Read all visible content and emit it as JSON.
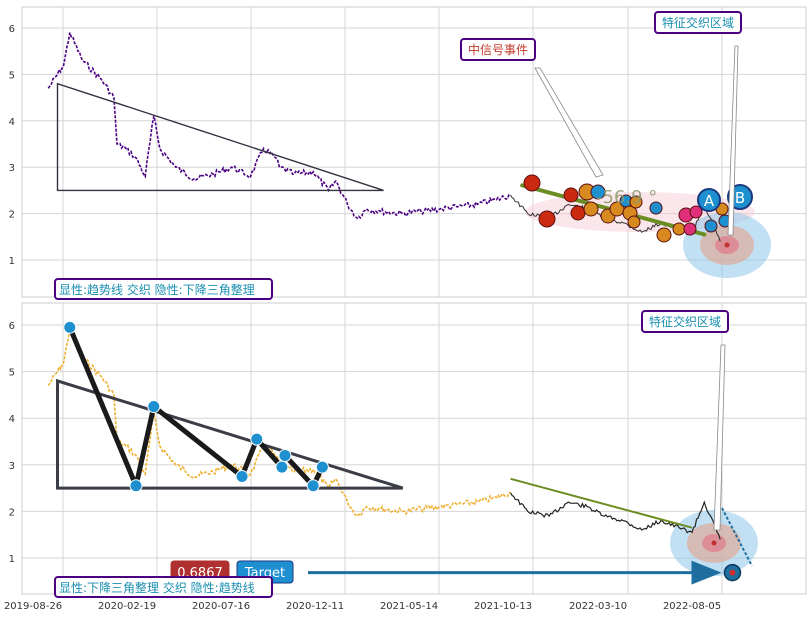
{
  "panels": {
    "top": {
      "callout_signal": "中信号事件",
      "callout_region": "特征交织区域",
      "angle_label": "-56.9 °",
      "circle_a": "A",
      "circle_b": "B",
      "legend": "显性:趋势线 交织 隐性:下降三角整理"
    },
    "bottom": {
      "callout_region": "特征交织区域",
      "legend": "显性:下降三角整理 交织 隐性:趋势线",
      "value_badge": "0.6867",
      "target_badge": "Target"
    }
  },
  "colors": {
    "top_series": "#4b0082",
    "bottom_series": "#f0b030",
    "triangle": "#333340",
    "trend": "#6b8e23",
    "pivot": "#1e90d0",
    "signal": "#cc2a10",
    "callout_border": "#4b0082",
    "callout_text_red": "#c0392b",
    "callout_text_teal": "#1a8fb0",
    "badge_red": "#b03030",
    "badge_blue": "#1e8fd0"
  },
  "chart_data": [
    {
      "type": "line",
      "panel": "top",
      "ylim": [
        0.3,
        6.4
      ],
      "y_ticks": [
        "1",
        "2",
        "3",
        "4",
        "5",
        "6"
      ],
      "x_ticks": [
        "2019-08-26",
        "2020-02-19",
        "2020-07-16",
        "2020-12-11",
        "2021-05-14",
        "2021-10-13",
        "2022-03-10",
        "2022-08-05"
      ],
      "grid": true,
      "series": [
        {
          "x": [
            "2019-09-20",
            "2019-10-15",
            "2019-10-25",
            "2019-11-15",
            "2019-12-15",
            "2020-01-05",
            "2020-01-10",
            "2020-01-25",
            "2020-02-10",
            "2020-02-25",
            "2020-03-10",
            "2020-03-20",
            "2020-04-15",
            "2020-05-15",
            "2020-06-15",
            "2020-07-15",
            "2020-08-15",
            "2020-09-05",
            "2020-09-25",
            "2020-10-01",
            "2020-10-25",
            "2020-11-25",
            "2020-12-20",
            "2021-01-01",
            "2021-01-20",
            "2021-02-05",
            "2021-02-20",
            "2021-03-15",
            "2021-04-20",
            "2021-05-20",
            "2021-06-20",
            "2021-07-20",
            "2021-08-20",
            "2021-09-20",
            "2021-10-13",
            "2021-11-10",
            "2021-12-15",
            "2022-01-15",
            "2022-02-15",
            "2022-03-15",
            "2022-04-15",
            "2022-05-15",
            "2022-06-15",
            "2022-07-15",
            "2022-08-05",
            "2022-08-25",
            "2022-09-20"
          ],
          "values": [
            4.7,
            5.2,
            5.9,
            5.3,
            4.9,
            4.5,
            3.5,
            3.4,
            3.2,
            2.8,
            4.1,
            3.4,
            3.0,
            2.75,
            2.85,
            3.0,
            2.8,
            3.4,
            3.2,
            3.0,
            2.85,
            2.9,
            2.5,
            2.7,
            2.2,
            1.9,
            2.1,
            2.05,
            2.0,
            2.05,
            2.1,
            2.15,
            2.2,
            2.3,
            2.4,
            2.0,
            1.9,
            2.2,
            2.1,
            1.9,
            1.8,
            1.6,
            1.8,
            1.65,
            1.55,
            2.2,
            1.4
          ]
        }
      ],
      "triangle": {
        "x": [
          "2019-10-05",
          "2019-10-05",
          "2021-03-20"
        ],
        "y": [
          4.8,
          2.5,
          2.5
        ]
      },
      "trend_line": {
        "x": [
          "2021-11-01",
          "2022-08-25"
        ],
        "y": [
          2.35,
          1.55
        ]
      },
      "signal_markers": {
        "count": 22
      }
    },
    {
      "type": "line",
      "panel": "bottom",
      "ylim": [
        0.3,
        6.4
      ],
      "y_ticks": [
        "1",
        "2",
        "3",
        "4",
        "5",
        "6"
      ],
      "x_ticks": [
        "2019-08-26",
        "2020-02-19",
        "2020-07-16",
        "2020-12-11",
        "2021-05-14",
        "2021-10-13",
        "2022-03-10",
        "2022-08-05"
      ],
      "grid": true,
      "series": [
        {
          "x": [
            "2019-09-20",
            "2019-10-15",
            "2019-10-25",
            "2019-11-15",
            "2019-12-15",
            "2020-01-05",
            "2020-01-10",
            "2020-01-25",
            "2020-02-10",
            "2020-02-25",
            "2020-03-10",
            "2020-03-20",
            "2020-04-15",
            "2020-05-15",
            "2020-06-15",
            "2020-07-15",
            "2020-08-15",
            "2020-09-05",
            "2020-09-25",
            "2020-10-01",
            "2020-10-25",
            "2020-11-25",
            "2020-12-20",
            "2021-01-01",
            "2021-01-20",
            "2021-02-05",
            "2021-02-20",
            "2021-03-15",
            "2021-04-20",
            "2021-05-20",
            "2021-06-20",
            "2021-07-20",
            "2021-08-20",
            "2021-09-20",
            "2021-10-13",
            "2021-11-10",
            "2021-12-15",
            "2022-01-15",
            "2022-02-15",
            "2022-03-15",
            "2022-04-15",
            "2022-05-15",
            "2022-06-15",
            "2022-07-15",
            "2022-08-05",
            "2022-08-25",
            "2022-09-20"
          ],
          "values": [
            4.7,
            5.2,
            5.9,
            5.3,
            4.9,
            4.5,
            3.5,
            3.4,
            3.2,
            2.8,
            4.1,
            3.4,
            3.0,
            2.75,
            2.85,
            3.0,
            2.8,
            3.4,
            3.2,
            3.0,
            2.85,
            2.9,
            2.5,
            2.7,
            2.2,
            1.9,
            2.1,
            2.05,
            2.0,
            2.05,
            2.1,
            2.15,
            2.2,
            2.3,
            2.4,
            2.0,
            1.9,
            2.2,
            2.1,
            1.9,
            1.8,
            1.6,
            1.8,
            1.65,
            1.55,
            2.2,
            1.4
          ]
        }
      ],
      "triangle": {
        "x": [
          "2019-10-05",
          "2019-10-05",
          "2021-04-20"
        ],
        "y": [
          4.8,
          2.5,
          2.5
        ]
      },
      "pivots": {
        "x": [
          "2019-10-25",
          "2020-02-10",
          "2020-03-10",
          "2020-08-01",
          "2020-08-25",
          "2020-10-05",
          "2020-10-10",
          "2020-11-25",
          "2020-12-10"
        ],
        "y": [
          5.95,
          2.55,
          4.25,
          2.75,
          3.55,
          2.95,
          3.2,
          2.55,
          2.95
        ]
      },
      "trend_line": {
        "x": [
          "2021-10-13",
          "2022-08-05"
        ],
        "y": [
          2.7,
          1.65
        ]
      },
      "target": {
        "x": "2022-10-10",
        "y": 0.6867
      }
    }
  ]
}
